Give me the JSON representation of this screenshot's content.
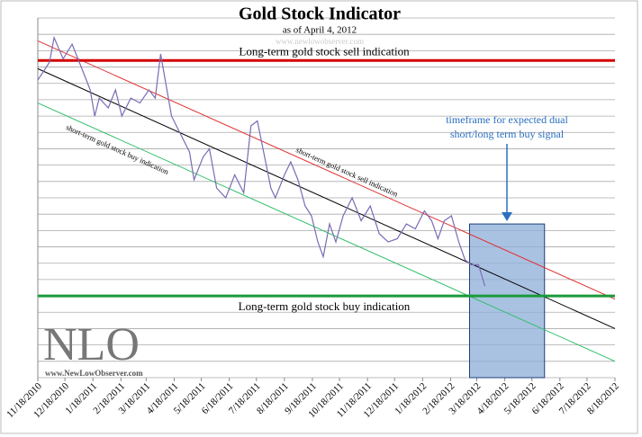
{
  "chart_data": {
    "type": "line",
    "title": "Gold Stock Indicator",
    "subtitle": "as of April 4, 2012",
    "watermark": "www.newlowobserver.com",
    "logo": {
      "text": "NLO",
      "url": "www.NewLowObserver.com"
    },
    "xlim": [
      "11/18/2010",
      "8/18/2012"
    ],
    "xticks": [
      "11/18/2010",
      "12/18/2010",
      "1/18/2011",
      "2/18/2011",
      "3/18/2011",
      "4/18/2011",
      "5/18/2011",
      "6/18/2011",
      "7/18/2011",
      "8/18/2011",
      "9/18/2011",
      "10/18/2011",
      "11/18/2011",
      "12/18/2011",
      "1/18/2012",
      "2/18/2012",
      "3/18/2012",
      "4/18/2012",
      "5/18/2012",
      "6/18/2012",
      "7/18/2012",
      "8/18/2012"
    ],
    "ylim": [
      0,
      22
    ],
    "yticks": [
      0,
      1,
      2,
      3,
      4,
      5,
      6,
      7,
      8,
      9,
      10,
      11,
      12,
      13,
      14,
      15,
      16,
      17,
      18,
      19,
      20,
      21,
      22
    ],
    "grid": true,
    "series": [
      {
        "color": "#7b6bb5",
        "x": [
          "11/18/2010",
          "12/1/2010",
          "12/6/2010",
          "12/16/2010",
          "12/26/2010",
          "1/5/2011",
          "1/15/2011",
          "1/20/2011",
          "1/25/2011",
          "2/4/2011",
          "2/12/2011",
          "2/19/2011",
          "3/1/2011",
          "3/11/2011",
          "3/21/2011",
          "3/28/2011",
          "4/3/2011",
          "4/10/2011",
          "4/15/2011",
          "4/25/2011",
          "5/5/2011",
          "5/10/2011",
          "5/20/2011",
          "5/27/2011",
          "6/4/2011",
          "6/14/2011",
          "6/24/2011",
          "7/4/2011",
          "7/12/2011",
          "7/19/2011",
          "7/26/2011",
          "8/3/2011",
          "8/8/2011",
          "8/18/2011",
          "8/25/2011",
          "9/2/2011",
          "9/10/2011",
          "9/17/2011",
          "9/24/2011",
          "9/30/2011",
          "10/7/2011",
          "10/14/2011",
          "10/22/2011",
          "11/1/2011",
          "11/11/2011",
          "11/21/2011",
          "12/1/2011",
          "12/11/2011",
          "12/21/2011",
          "12/31/2011",
          "1/10/2012",
          "1/20/2012",
          "1/28/2012",
          "2/4/2012",
          "2/11/2012",
          "2/19/2012",
          "2/27/2012",
          "3/5/2012",
          "3/12/2012",
          "3/20/2012",
          "3/27/2012"
        ],
        "values": [
          18.2,
          19.3,
          20.8,
          19.5,
          20.4,
          19.0,
          17.6,
          16.0,
          17.1,
          16.5,
          17.6,
          16.0,
          17.1,
          16.8,
          17.6,
          17.1,
          19.8,
          17.6,
          16.0,
          14.9,
          13.8,
          12.1,
          13.5,
          14.0,
          11.6,
          11.0,
          12.4,
          11.3,
          15.4,
          15.7,
          13.8,
          11.6,
          11.0,
          12.4,
          13.2,
          12.1,
          10.5,
          9.9,
          8.3,
          7.4,
          9.4,
          8.3,
          9.9,
          11.0,
          9.6,
          10.5,
          8.8,
          8.3,
          8.5,
          9.4,
          9.1,
          10.2,
          9.6,
          8.5,
          9.6,
          9.9,
          8.3,
          7.2,
          6.9,
          6.9,
          5.6
        ]
      }
    ],
    "reference_lines": [
      {
        "label": "Long-term gold stock sell indication",
        "value": 19.4,
        "color": "#d40000"
      },
      {
        "label": "Long-term gold stock buy indication",
        "value": 5.0,
        "color": "#1a9a3a"
      }
    ],
    "trend_lines": [
      {
        "label": "short-term gold stock sell indication",
        "color": "#e03030",
        "x": [
          "11/18/2010",
          "8/18/2012"
        ],
        "values": [
          20.6,
          4.8
        ]
      },
      {
        "color": "#000000",
        "x": [
          "11/18/2010",
          "8/18/2012"
        ],
        "values": [
          18.9,
          3.0
        ]
      },
      {
        "label": "short-term gold stock buy indication",
        "color": "#2fbf6a",
        "x": [
          "11/18/2010",
          "8/18/2012"
        ],
        "values": [
          16.8,
          1.0
        ]
      }
    ],
    "highlight": {
      "x": [
        "3/10/2012",
        "6/1/2012"
      ],
      "top": 9.4,
      "color": "#8eaed8",
      "annotation": [
        "timeframe for expected dual",
        "short/long term buy signal"
      ]
    }
  }
}
